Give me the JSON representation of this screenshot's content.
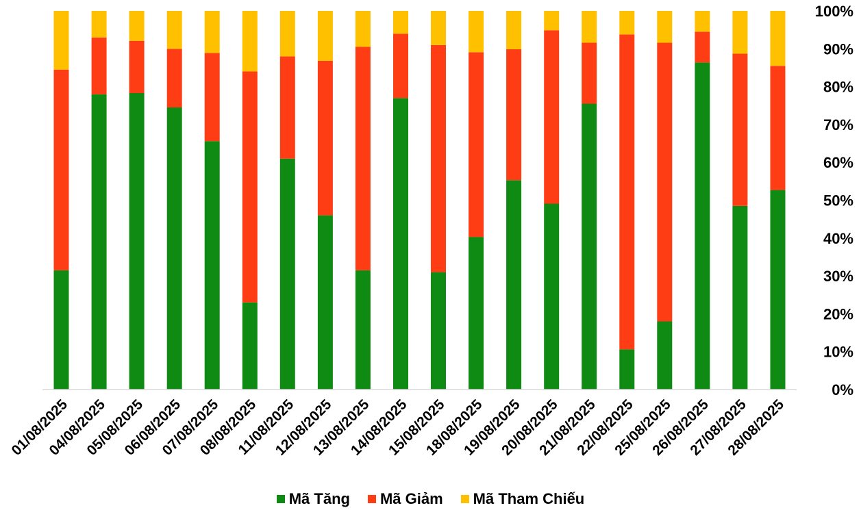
{
  "chart_data": {
    "type": "bar",
    "stacked": true,
    "normalized": true,
    "categories": [
      "01/08/2025",
      "04/08/2025",
      "05/08/2025",
      "06/08/2025",
      "07/08/2025",
      "08/08/2025",
      "11/08/2025",
      "12/08/2025",
      "13/08/2025",
      "14/08/2025",
      "15/08/2025",
      "18/08/2025",
      "19/08/2025",
      "20/08/2025",
      "21/08/2025",
      "22/08/2025",
      "25/08/2025",
      "26/08/2025",
      "27/08/2025",
      "28/08/2025"
    ],
    "series": [
      {
        "name": "Mã Tăng",
        "color": "#0F8B13",
        "values": [
          31.5,
          78,
          78.3,
          74.5,
          65.6,
          23,
          61,
          46,
          31.5,
          77,
          31,
          40.3,
          55.3,
          49.1,
          75.5,
          10.6,
          18,
          86.4,
          48.5,
          52.7
        ]
      },
      {
        "name": "Mã Giảm",
        "color": "#FF3D14",
        "values": [
          53,
          15,
          13.8,
          15.5,
          23.3,
          61,
          27,
          40.8,
          59,
          17,
          60,
          48.8,
          34.6,
          45.8,
          16.1,
          83.2,
          73.6,
          8.1,
          40.2,
          32.8
        ]
      },
      {
        "name": "Mã Tham Chiếu",
        "color": "#FFC000",
        "values": [
          15.5,
          7,
          7.9,
          10,
          11.1,
          16,
          12,
          13.2,
          9.5,
          6,
          9,
          10.9,
          10.1,
          5.1,
          8.4,
          6.2,
          8.4,
          5.5,
          11.3,
          14.5
        ]
      }
    ],
    "y_ticks": [
      "0%",
      "10%",
      "20%",
      "30%",
      "40%",
      "50%",
      "60%",
      "70%",
      "80%",
      "90%",
      "100%"
    ],
    "ylim": [
      0,
      100
    ],
    "y_axis_position": "right",
    "grid": false,
    "legend_position": "bottom"
  }
}
